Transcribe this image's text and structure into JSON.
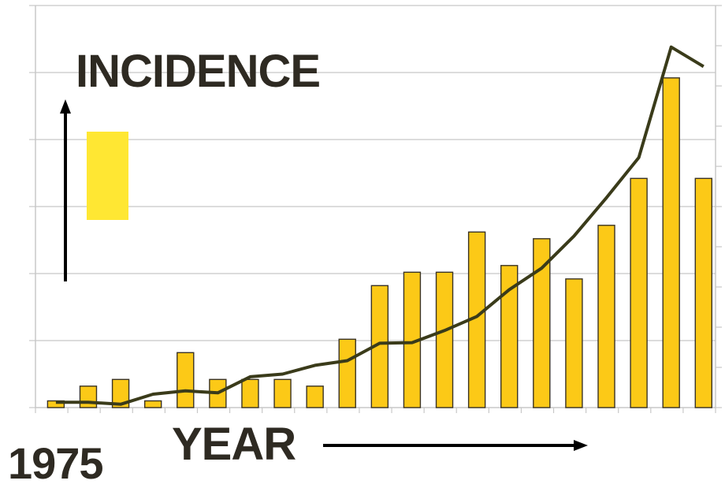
{
  "chart_data": {
    "type": "bar",
    "title": "",
    "xlabel": "YEAR",
    "ylabel": "INCIDENCE",
    "x_start_label": "1975",
    "x_categories_count": 21,
    "ylim": [
      0,
      6
    ],
    "grid": true,
    "series": [
      {
        "kind": "bar",
        "values": [
          0.1,
          0.32,
          0.42,
          0.1,
          0.82,
          0.42,
          0.42,
          0.42,
          0.32,
          1.02,
          1.82,
          2.02,
          2.02,
          2.62,
          2.12,
          2.52,
          1.92,
          2.72,
          3.42,
          4.92,
          3.42
        ]
      },
      {
        "kind": "line",
        "values": [
          0.08,
          0.08,
          0.05,
          0.2,
          0.25,
          0.22,
          0.46,
          0.5,
          0.63,
          0.7,
          0.96,
          0.97,
          1.15,
          1.36,
          1.76,
          2.08,
          2.56,
          3.13,
          3.73,
          5.38,
          5.09
        ]
      }
    ],
    "colors": {
      "bar_fill": "#fcc917",
      "bar_stroke": "#3a3324",
      "line": "#3a3b1a",
      "grid": "#c8c8c8",
      "legend_swatch": "#ffe733",
      "text": "#2e2a22"
    }
  }
}
